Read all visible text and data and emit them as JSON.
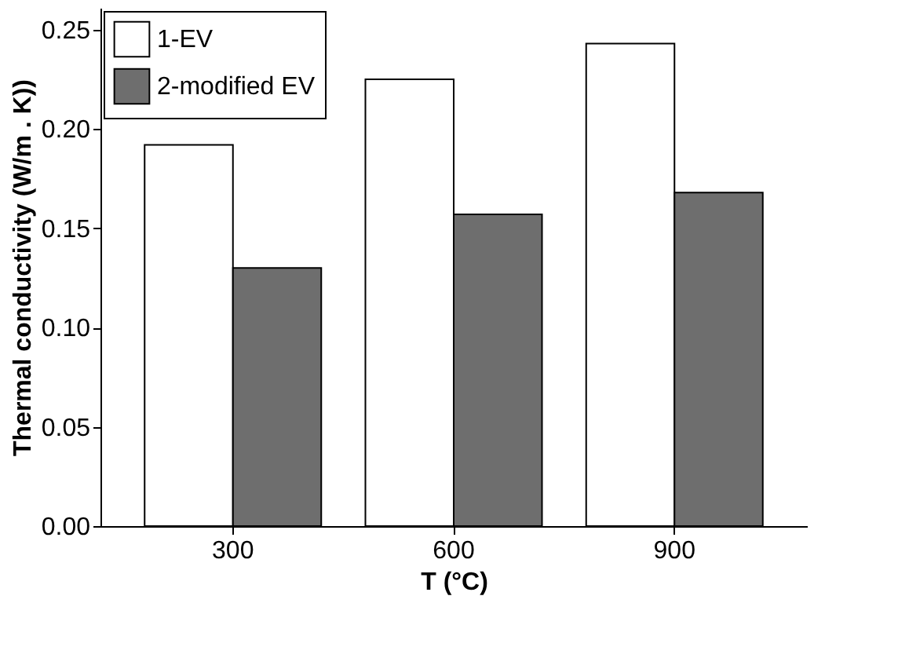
{
  "chart_data": {
    "type": "bar",
    "xlabel": "T (°C)",
    "ylabel": "Thermal conductivity (W/m . K))",
    "categories": [
      "300",
      "600",
      "900"
    ],
    "series": [
      {
        "name": "1-EV",
        "color": "#ffffff",
        "values": [
          0.192,
          0.225,
          0.243
        ]
      },
      {
        "name": "2-modified EV",
        "color": "#6e6e6e",
        "values": [
          0.13,
          0.157,
          0.168
        ]
      }
    ],
    "ylim": [
      0,
      0.261
    ],
    "yticks": [
      {
        "value": 0,
        "label": "0.00"
      },
      {
        "value": 0.05,
        "label": "0.05"
      },
      {
        "value": 0.1,
        "label": "0.10"
      },
      {
        "value": 0.15,
        "label": "0.15"
      },
      {
        "value": 0.2,
        "label": "0.20"
      },
      {
        "value": 0.25,
        "label": "0.25"
      }
    ],
    "grid": false,
    "legend": "top left"
  }
}
